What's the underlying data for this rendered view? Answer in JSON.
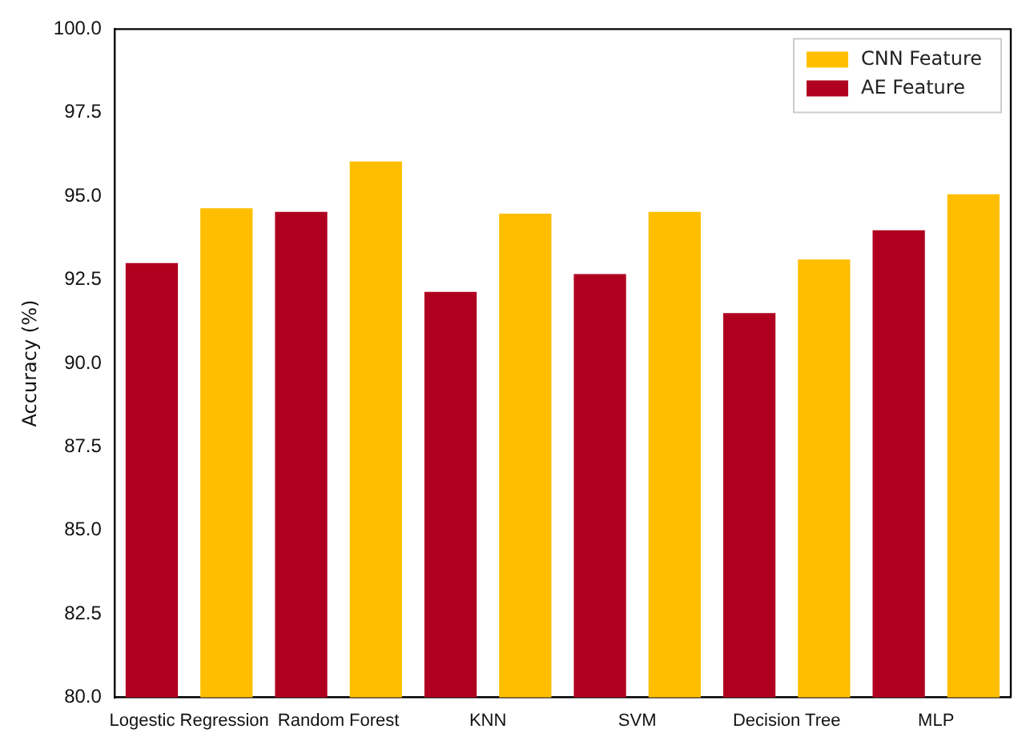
{
  "chart_data": {
    "type": "bar",
    "ylabel": "Accuracy (%)",
    "categories": [
      "Logestic Regression",
      "Random Forest",
      "KNN",
      "SVM",
      "Decision Tree",
      "MLP"
    ],
    "series": [
      {
        "name": "AE Feature",
        "color": "#b00020",
        "values": [
          93.0,
          94.53,
          92.14,
          92.67,
          91.5,
          93.98
        ]
      },
      {
        "name": "CNN Feature",
        "color": "#ffbf00",
        "values": [
          94.64,
          96.04,
          94.48,
          94.53,
          93.11,
          95.06
        ]
      }
    ],
    "ylim": [
      80,
      100
    ],
    "yticks": [
      {
        "value": 80,
        "label": "80.0"
      },
      {
        "value": 82.5,
        "label": "82.5"
      },
      {
        "value": 85,
        "label": "85.0"
      },
      {
        "value": 87.5,
        "label": "87.5"
      },
      {
        "value": 90,
        "label": "90.0"
      },
      {
        "value": 92.5,
        "label": "92.5"
      },
      {
        "value": 95,
        "label": "95.0"
      },
      {
        "value": 97.5,
        "label": "97.5"
      },
      {
        "value": 100,
        "label": "100.0"
      }
    ],
    "grid": false,
    "legend": "top right"
  }
}
